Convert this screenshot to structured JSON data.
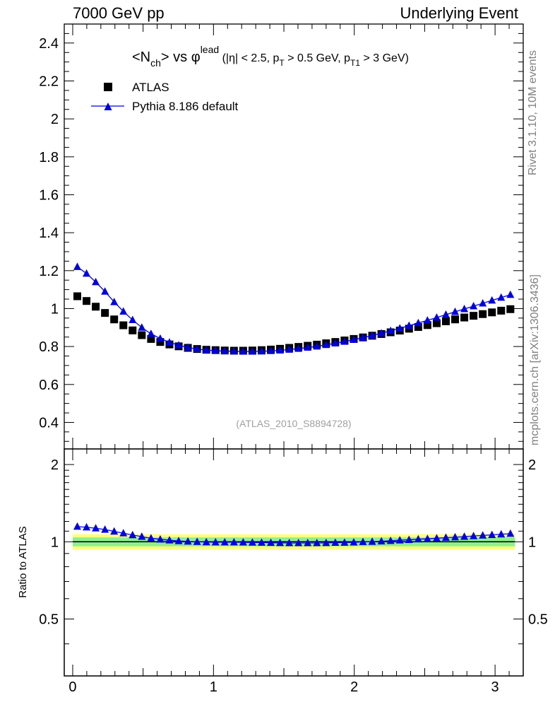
{
  "header": {
    "left": "7000 GeV pp",
    "right": "Underlying Event"
  },
  "side_labels": {
    "rivet": "Rivet 3.1.10,  10M events",
    "mcplots": "mcplots.cern.ch [arXiv:1306.3436]"
  },
  "chart_data": [
    {
      "type": "scatter",
      "title": {
        "pre": "<N",
        "sub1": "ch",
        "mid": "> vs ",
        "phi": "φ",
        "sup": "lead",
        "cuts_a": " (|η| < 2.5, p",
        "sub2": "T",
        "cuts_b": " > 0.5 GeV, p",
        "sub3": "T1",
        "cuts_c": " > 3 GeV)"
      },
      "analysis_label": "(ATLAS_2010_S8894728)",
      "xlim": [
        -0.06,
        3.2
      ],
      "ylim": [
        0.26,
        2.5
      ],
      "yticks": [
        0.4,
        0.6,
        0.8,
        1.0,
        1.2,
        1.4,
        1.6,
        1.8,
        2.0,
        2.2,
        2.4
      ],
      "ytick_labels": [
        "0.4",
        "0.6",
        "0.8",
        "1",
        "1.2",
        "1.4",
        "1.6",
        "1.8",
        "2",
        "2.2",
        "2.4"
      ],
      "legend": {
        "position": "top-left",
        "entries": [
          "ATLAS",
          "Pythia 8.186 default"
        ]
      },
      "x": [
        0.0327,
        0.0982,
        0.1636,
        0.2291,
        0.2945,
        0.36,
        0.4254,
        0.4909,
        0.5563,
        0.6218,
        0.6872,
        0.7527,
        0.8181,
        0.8836,
        0.949,
        1.0145,
        1.0799,
        1.1454,
        1.2108,
        1.2763,
        1.3417,
        1.4072,
        1.4726,
        1.5381,
        1.6035,
        1.669,
        1.7344,
        1.7999,
        1.8653,
        1.9308,
        1.9962,
        2.0617,
        2.1271,
        2.1926,
        2.258,
        2.3235,
        2.3889,
        2.4544,
        2.5198,
        2.5853,
        2.6507,
        2.7162,
        2.7816,
        2.8471,
        2.9125,
        2.978,
        3.0434,
        3.1089
      ],
      "series": [
        {
          "name": "ATLAS",
          "marker": "square",
          "color": "#000000",
          "values": [
            1.065,
            1.04,
            1.01,
            0.977,
            0.943,
            0.912,
            0.885,
            0.86,
            0.84,
            0.824,
            0.811,
            0.801,
            0.793,
            0.787,
            0.783,
            0.781,
            0.779,
            0.778,
            0.778,
            0.779,
            0.781,
            0.784,
            0.788,
            0.793,
            0.798,
            0.804,
            0.81,
            0.817,
            0.824,
            0.832,
            0.84,
            0.848,
            0.857,
            0.866,
            0.875,
            0.884,
            0.894,
            0.903,
            0.913,
            0.923,
            0.933,
            0.943,
            0.953,
            0.962,
            0.971,
            0.98,
            0.989,
            0.997
          ]
        },
        {
          "name": "Pythia 8.186 default",
          "marker": "triangle",
          "color": "#0000e0",
          "values": [
            1.22,
            1.185,
            1.14,
            1.09,
            1.035,
            0.985,
            0.94,
            0.9,
            0.867,
            0.842,
            0.822,
            0.807,
            0.795,
            0.787,
            0.781,
            0.778,
            0.776,
            0.775,
            0.774,
            0.774,
            0.775,
            0.777,
            0.78,
            0.784,
            0.789,
            0.795,
            0.801,
            0.809,
            0.817,
            0.826,
            0.836,
            0.847,
            0.858,
            0.87,
            0.883,
            0.896,
            0.91,
            0.924,
            0.938,
            0.953,
            0.968,
            0.983,
            0.998,
            1.013,
            1.028,
            1.043,
            1.058,
            1.073
          ]
        }
      ]
    },
    {
      "type": "scatter",
      "ylabel": "Ratio to ATLAS",
      "xlim": [
        -0.06,
        3.2
      ],
      "ylim": [
        0.3,
        2.3
      ],
      "yscale": "log",
      "yticks": [
        0.5,
        1.0,
        2.0
      ],
      "ytick_labels": [
        "0.5",
        "1",
        "2"
      ],
      "xticks": [
        0,
        1,
        2,
        3
      ],
      "xtick_labels": [
        "0",
        "1",
        "2",
        "3"
      ],
      "reference": 1.0,
      "band_inner": [
        0.96,
        1.04
      ],
      "band_outer": [
        0.93,
        1.07
      ],
      "band_colors": {
        "inner": "#90ee90",
        "outer": "#ffff80"
      },
      "series": [
        {
          "name": "Pythia 8.186 default",
          "marker": "triangle",
          "color": "#0000e0",
          "values": [
            1.146,
            1.139,
            1.129,
            1.116,
            1.097,
            1.08,
            1.062,
            1.047,
            1.032,
            1.022,
            1.014,
            1.007,
            1.003,
            1.0,
            0.997,
            0.996,
            0.996,
            0.996,
            0.995,
            0.994,
            0.993,
            0.991,
            0.99,
            0.989,
            0.989,
            0.989,
            0.989,
            0.99,
            0.992,
            0.993,
            0.995,
            0.999,
            1.001,
            1.005,
            1.009,
            1.014,
            1.018,
            1.023,
            1.027,
            1.032,
            1.038,
            1.042,
            1.047,
            1.053,
            1.059,
            1.064,
            1.07,
            1.076
          ]
        }
      ]
    }
  ]
}
